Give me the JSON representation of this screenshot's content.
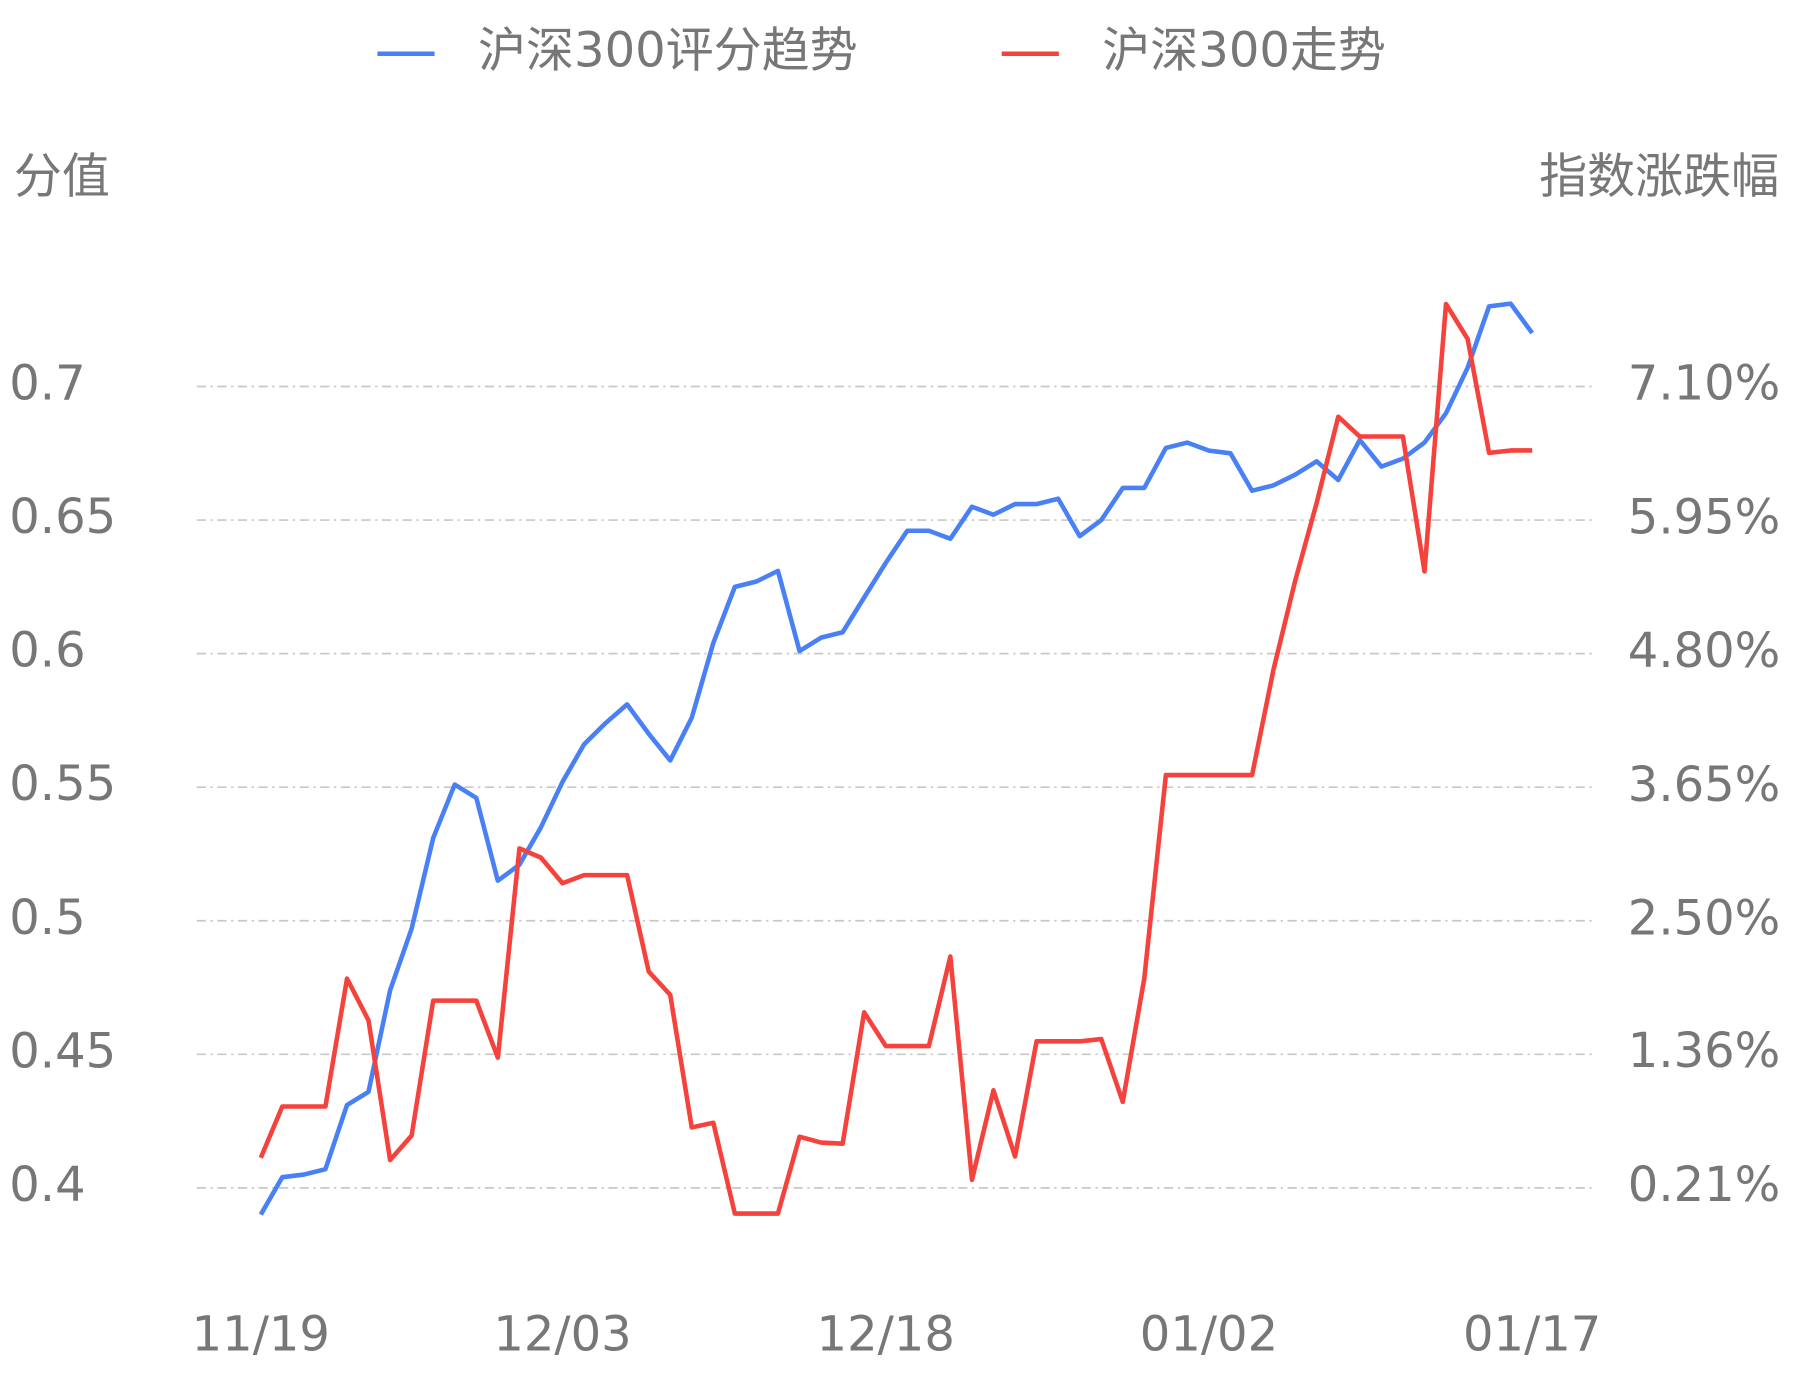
{
  "chart_data": {
    "type": "line",
    "y_label": "分值",
    "y2_label": "指数涨跌幅",
    "categories": [
      "11/19",
      null,
      null,
      null,
      null,
      null,
      null,
      null,
      null,
      null,
      null,
      null,
      null,
      null,
      "12/03",
      null,
      null,
      null,
      null,
      null,
      null,
      null,
      null,
      null,
      null,
      null,
      null,
      null,
      null,
      "12/18",
      null,
      null,
      null,
      null,
      null,
      null,
      null,
      null,
      null,
      null,
      null,
      null,
      null,
      null,
      "01/02",
      null,
      null,
      null,
      null,
      null,
      null,
      null,
      null,
      null,
      null,
      null,
      null,
      null,
      null,
      "01/17"
    ],
    "series": [
      {
        "name": "沪深300评分趋势",
        "color": "#4a80f5",
        "axis": "y",
        "values": [
          0.39,
          0.404,
          0.405,
          0.407,
          0.431,
          0.436,
          0.474,
          0.497,
          0.531,
          0.551,
          0.546,
          0.515,
          0.521,
          0.535,
          0.552,
          0.566,
          0.574,
          0.581,
          0.57,
          0.56,
          0.576,
          0.604,
          0.625,
          0.627,
          0.631,
          0.601,
          0.606,
          0.608,
          0.621,
          0.634,
          0.646,
          0.646,
          0.643,
          0.655,
          0.652,
          0.656,
          0.656,
          0.658,
          0.644,
          0.65,
          0.662,
          0.662,
          0.677,
          0.679,
          0.676,
          0.675,
          0.661,
          0.663,
          0.667,
          0.672,
          0.665,
          0.68,
          0.67,
          0.673,
          0.679,
          0.69,
          0.707,
          0.73,
          0.731,
          0.72
        ]
      },
      {
        "name": "沪深300走势",
        "color": "#f5423c",
        "axis": "y2",
        "values": [
          0.47,
          0.91,
          0.91,
          0.91,
          2.01,
          1.65,
          0.45,
          0.66,
          1.82,
          1.82,
          1.82,
          1.33,
          3.13,
          3.05,
          2.83,
          2.9,
          2.9,
          2.9,
          2.07,
          1.87,
          0.73,
          0.77,
          -0.01,
          -0.01,
          -0.01,
          0.65,
          0.6,
          0.59,
          1.72,
          1.43,
          1.43,
          1.43,
          2.2,
          0.28,
          1.05,
          0.48,
          1.47,
          1.47,
          1.47,
          1.49,
          0.95,
          2.01,
          3.76,
          3.76,
          3.76,
          3.76,
          3.76,
          4.67,
          5.43,
          6.1,
          6.84,
          6.67,
          6.67,
          6.67,
          5.51,
          7.81,
          7.51,
          6.53,
          6.55,
          6.55
        ]
      }
    ],
    "ylim": [
      0.38,
      0.74
    ],
    "yticks": [
      0.4,
      0.45,
      0.5,
      0.55,
      0.6,
      0.65,
      0.7
    ],
    "y2lim": [
      -0.249,
      8.019
    ],
    "y2ticks": [
      {
        "value": 0.21,
        "label": "0.21%"
      },
      {
        "value": 1.36,
        "label": "1.36%"
      },
      {
        "value": 2.5,
        "label": "2.50%"
      },
      {
        "value": 3.65,
        "label": "3.65%"
      },
      {
        "value": 4.8,
        "label": "4.80%"
      },
      {
        "value": 5.95,
        "label": "5.95%"
      },
      {
        "value": 7.1,
        "label": "7.10%"
      }
    ],
    "grid": true,
    "legend": "top"
  }
}
